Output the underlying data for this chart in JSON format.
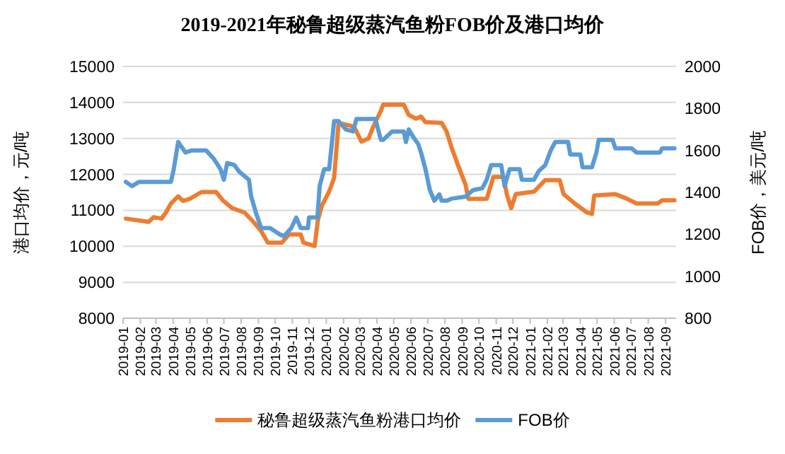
{
  "chart_data": {
    "type": "line",
    "title": "2019-2021年秘鲁超级蒸汽鱼粉FOB价及港口均价",
    "ylabel": "港口均价，元/吨",
    "y2label": "FOB价，美元/吨",
    "xlim": [
      "2019-01-01",
      "2021-09-20"
    ],
    "xticks": [
      "2019-01",
      "2019-02",
      "2019-03",
      "2019-04",
      "2019-05",
      "2019-06",
      "2019-07",
      "2019-08",
      "2019-09",
      "2019-10",
      "2019-11",
      "2019-12",
      "2020-01",
      "2020-02",
      "2020-03",
      "2020-04",
      "2020-05",
      "2020-06",
      "2020-07",
      "2020-08",
      "2020-09",
      "2020-10",
      "2020-11",
      "2020-12",
      "2021-01",
      "2021-02",
      "2021-03",
      "2021-04",
      "2021-05",
      "2021-06",
      "2021-07",
      "2021-08",
      "2021-09"
    ],
    "ylim": [
      8000,
      15000
    ],
    "yticks": [
      8000,
      9000,
      10000,
      11000,
      12000,
      13000,
      14000,
      15000
    ],
    "y2lim": [
      800,
      2000
    ],
    "y2ticks": [
      800,
      1000,
      1200,
      1400,
      1600,
      1800,
      2000
    ],
    "grid": "y",
    "legend": "bottom",
    "series": [
      {
        "name": "秘鲁超级蒸汽鱼粉港口均价",
        "color": "#ed7d31",
        "x": [
          "2019-01-06",
          "2019-02-16",
          "2019-02-25",
          "2019-03-11",
          "2019-03-19",
          "2019-03-28",
          "2019-04-10",
          "2019-04-19",
          "2019-05-01",
          "2019-05-22",
          "2019-06-17",
          "2019-06-29",
          "2019-07-16",
          "2019-08-07",
          "2019-08-23",
          "2019-09-06",
          "2019-09-18",
          "2019-10-13",
          "2019-10-26",
          "2019-11-16",
          "2019-11-21",
          "2019-12-11",
          "2019-12-17",
          "2019-12-24",
          "2020-01-06",
          "2020-01-15",
          "2020-01-23",
          "2020-02-14",
          "2020-02-22",
          "2020-03-04",
          "2020-03-17",
          "2020-03-25",
          "2020-04-08",
          "2020-04-12",
          "2020-05-19",
          "2020-05-28",
          "2020-06-10",
          "2020-06-19",
          "2020-06-27",
          "2020-07-26",
          "2020-08-04",
          "2020-08-13",
          "2020-08-25",
          "2020-09-07",
          "2020-09-12",
          "2020-10-15",
          "2020-10-27",
          "2020-11-14",
          "2020-11-20",
          "2020-11-28",
          "2020-12-06",
          "2021-01-08",
          "2021-01-28",
          "2021-02-23",
          "2021-03-02",
          "2021-03-22",
          "2021-04-13",
          "2021-04-22",
          "2021-04-26",
          "2021-06-03",
          "2021-06-24",
          "2021-07-11",
          "2021-08-18",
          "2021-08-26",
          "2021-09-17"
        ],
        "values": [
          10770,
          10680,
          10810,
          10770,
          10940,
          11190,
          11390,
          11260,
          11320,
          11510,
          11510,
          11280,
          11060,
          10940,
          10680,
          10420,
          10100,
          10100,
          10330,
          10330,
          10100,
          10010,
          10740,
          11130,
          11520,
          11900,
          13430,
          13350,
          13260,
          12910,
          13000,
          13320,
          13770,
          13940,
          13940,
          13650,
          13550,
          13610,
          13450,
          13430,
          13190,
          12740,
          12230,
          11710,
          11320,
          11320,
          11930,
          11930,
          11450,
          11060,
          11450,
          11520,
          11840,
          11840,
          11450,
          11190,
          10940,
          10900,
          11410,
          11450,
          11320,
          11190,
          11190,
          11280,
          11280
        ]
      },
      {
        "name": "FOB价",
        "color": "#5b9bd5",
        "axis": "y2",
        "x": [
          "2019-01-06",
          "2019-01-17",
          "2019-01-30",
          "2019-03-28",
          "2019-04-02",
          "2019-04-10",
          "2019-04-23",
          "2019-05-05",
          "2019-05-30",
          "2019-06-13",
          "2019-06-25",
          "2019-07-01",
          "2019-07-07",
          "2019-07-20",
          "2019-07-28",
          "2019-08-15",
          "2019-08-19",
          "2019-08-28",
          "2019-09-06",
          "2019-09-22",
          "2019-10-09",
          "2019-10-17",
          "2019-10-30",
          "2019-11-08",
          "2019-11-16",
          "2019-11-29",
          "2019-12-01",
          "2019-12-16",
          "2019-12-20",
          "2019-12-28",
          "2020-01-06",
          "2020-01-10",
          "2020-01-15",
          "2020-01-23",
          "2020-02-05",
          "2020-02-18",
          "2020-02-24",
          "2020-03-29",
          "2020-04-04",
          "2020-04-08",
          "2020-04-12",
          "2020-04-28",
          "2020-05-19",
          "2020-05-23",
          "2020-05-28",
          "2020-06-06",
          "2020-06-14",
          "2020-06-19",
          "2020-06-27",
          "2020-07-05",
          "2020-07-13",
          "2020-07-22",
          "2020-07-26",
          "2020-08-04",
          "2020-08-13",
          "2020-09-07",
          "2020-09-20",
          "2020-10-07",
          "2020-10-15",
          "2020-10-23",
          "2020-11-10",
          "2020-11-16",
          "2020-11-25",
          "2020-12-13",
          "2020-12-17",
          "2021-01-08",
          "2021-01-16",
          "2021-01-28",
          "2021-02-07",
          "2021-02-15",
          "2021-03-10",
          "2021-03-14",
          "2021-04-01",
          "2021-04-05",
          "2021-04-22",
          "2021-04-30",
          "2021-05-04",
          "2021-05-29",
          "2021-06-03",
          "2021-07-02",
          "2021-07-11",
          "2021-08-22",
          "2021-08-26",
          "2021-09-17"
        ],
        "values": [
          1450,
          1430,
          1450,
          1450,
          1510,
          1640,
          1590,
          1600,
          1600,
          1560,
          1510,
          1460,
          1540,
          1530,
          1500,
          1460,
          1380,
          1300,
          1230,
          1230,
          1200,
          1190,
          1230,
          1280,
          1230,
          1230,
          1280,
          1280,
          1430,
          1510,
          1510,
          1610,
          1740,
          1740,
          1700,
          1690,
          1750,
          1750,
          1690,
          1650,
          1650,
          1690,
          1690,
          1640,
          1700,
          1660,
          1630,
          1590,
          1510,
          1410,
          1360,
          1390,
          1360,
          1360,
          1370,
          1380,
          1410,
          1420,
          1460,
          1530,
          1530,
          1430,
          1510,
          1510,
          1460,
          1460,
          1500,
          1530,
          1600,
          1640,
          1640,
          1580,
          1580,
          1520,
          1520,
          1590,
          1650,
          1650,
          1610,
          1610,
          1590,
          1590,
          1610,
          1610
        ]
      }
    ]
  }
}
